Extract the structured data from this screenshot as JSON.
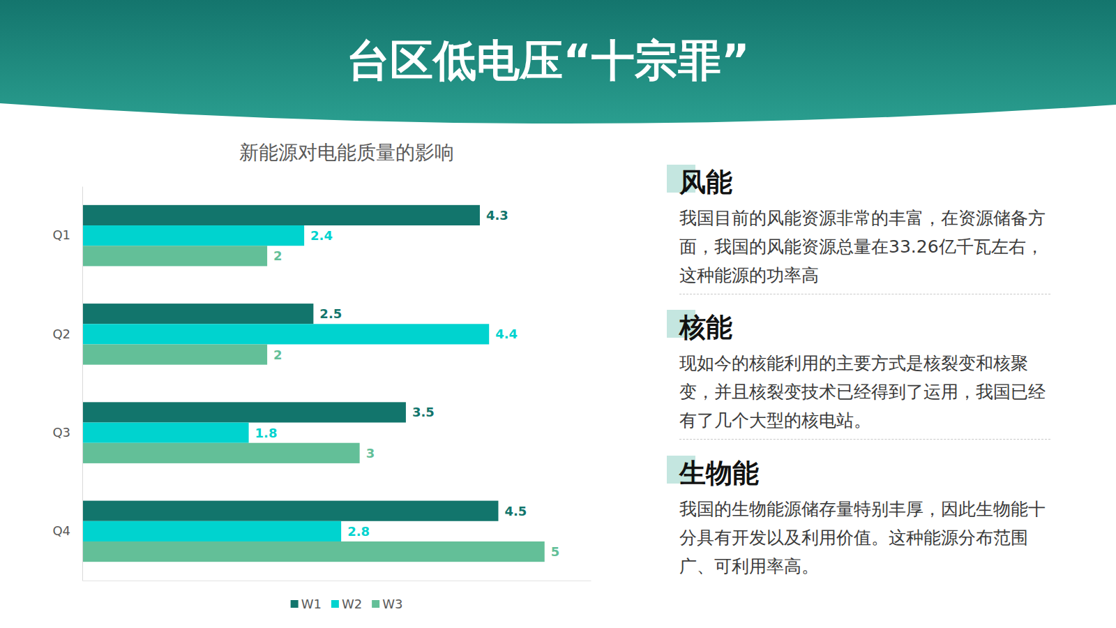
{
  "title": "台区低电压“十宗罪”",
  "sections": [
    {
      "heading": "风能",
      "text": "我国目前的风能资源非常的丰富，在资源储备方面，我国的风能资源总量在33.26亿千瓦左右，这种能源的功率高"
    },
    {
      "heading": "核能",
      "text": "现如今的核能利用的主要方式是核裂变和核聚变，并且核裂变技术已经得到了运用，我国已经有了几个大型的核电站。"
    },
    {
      "heading": "生物能",
      "text": "我国的生物能源储存量特别丰厚，因此生物能十分具有开发以及利用价值。这种能源分布范围广、可利用率高。"
    }
  ],
  "chart_data": {
    "type": "bar",
    "title": "新能源对电能质量的影响",
    "orientation": "horizontal",
    "categories": [
      "Q1",
      "Q2",
      "Q3",
      "Q4"
    ],
    "series": [
      {
        "name": "W1",
        "color": "#12756c",
        "values": [
          4.3,
          2.5,
          3.5,
          4.5
        ]
      },
      {
        "name": "W2",
        "color": "#00d3cf",
        "values": [
          2.4,
          4.4,
          1.8,
          2.8
        ]
      },
      {
        "name": "W3",
        "color": "#63bf98",
        "values": [
          2,
          2,
          3,
          5
        ]
      }
    ],
    "xlim": [
      0,
      5.5
    ],
    "data_labels": true,
    "tick_labels": "y",
    "grid": false,
    "legend": "bottom"
  }
}
